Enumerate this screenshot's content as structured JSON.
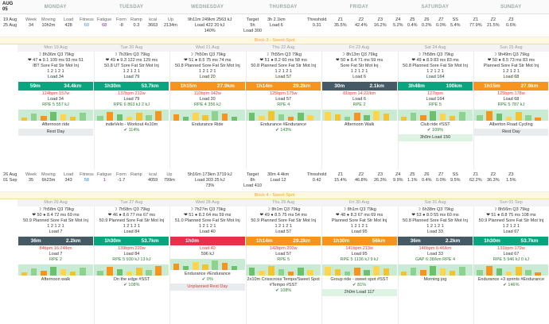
{
  "nav": {
    "month": "AUG",
    "day": "05"
  },
  "days": [
    "MONDAY",
    "TUESDAY",
    "WEDNESDAY",
    "THURSDAY",
    "FRIDAY",
    "SATURDAY",
    "SUNDAY"
  ],
  "week1": {
    "summary": {
      "date": "19 Aug",
      "date2": "25 Aug",
      "week": "34",
      "moving": "10h2m",
      "load": "428",
      "fitness": "60",
      "fatigue": "68",
      "form": "-8",
      "ramp": "0.3",
      "kcal": "3663",
      "up": "2134m",
      "ride": "9h11m 249km 2563 kJ",
      "ride_load": "Load 422",
      "ride_kj": "20 kJ",
      "ride_pct": "140%",
      "target_label": "Target",
      "target_time": "5h",
      "target_km": "3h 2.1km",
      "target_load": "Load 300",
      "run_load": "Load 6",
      "threshold": "0.31",
      "z1": "35.5%",
      "z2": "42.4%",
      "z3": "16.2%",
      "z4": "5.2%",
      "z5": "0.4%",
      "z6": "0.2%",
      "z7": "0.0%",
      "ss": "5.4%",
      "z1b": "77.9%",
      "z2b": "21.5%",
      "z3b": "0.6%"
    },
    "block": "Block 3 - Sweet Spot",
    "days": [
      {
        "date": "Mon 19 Aug",
        "time": "8h36m",
        "q": "Q3",
        "w": "79kg",
        "m": "❤ 47  ● 9.1  109 ms  93 ms  51",
        "wb": "IBT  Sore Fat Str Mot Inj",
        "wb2": "1  2  1  2  1",
        "load": "Load 34",
        "bar_l": "59m",
        "bar_r": "34.4km",
        "bar_c": "g",
        "s1": "124bpm  157w",
        "s2": "Load 34",
        "s3": "RPE 5  557 kJ",
        "s4": "Afternoon ride",
        "chip": "Rest Day",
        "pct": ""
      },
      {
        "date": "Tue 20 Aug",
        "time": "7h39m",
        "q": "Q3",
        "w": "79kg",
        "m": "❤ 49  ● 9.3  122 ms  129 ms",
        "wb": "50.8  UT  Sore Fat Str Mot Inj",
        "wb2": "1  2  1  2  1",
        "load": "Load 79",
        "bar_l": "1h30m",
        "bar_r": "53.7km",
        "bar_c": "g",
        "s1": "137bpm  212w",
        "s2": "Load 79",
        "s3": "RPE 6  863 kJ  2 kJ",
        "s4": "indieVelo - Workout 4x10m",
        "chip": "",
        "pct": "114%"
      },
      {
        "date": "Wed 21 Aug",
        "time": "7h50m",
        "q": "Q3",
        "w": "79kg",
        "m": "❤ 51  ● 8.5  75 ms  74 ms",
        "wb": "50.8  Planned  Sore Fat Str Mot Inj",
        "wb2": "1  2  1  2  1",
        "load": "Load 20",
        "bar_l": "1h15m",
        "bar_r": "27.9km",
        "bar_c": "o",
        "s1": "110bpm  142w",
        "s2": "Load 20",
        "s3": "RPE 4  356 kJ",
        "s4": "Endurance Ride",
        "chip": "",
        "pct": ""
      },
      {
        "date": "Thu 22 Aug",
        "time": "7h55m",
        "q": "Q3",
        "w": "79kg",
        "m": "❤ 51  ● 8.2  60 ms  58 ms",
        "wb": "50.8  Planned  Sore Fat Str Mot Inj",
        "wb2": "1  2  1  2  1",
        "load": "Load 57",
        "bar_l": "1h14m",
        "bar_r": "29.2km",
        "bar_c": "o",
        "s1": "125bpm  175w",
        "s2": "Load 57",
        "s3": "RPE 4",
        "s4": "Endurance #Endurance",
        "chip": "",
        "pct": "143%"
      },
      {
        "date": "Fri 23 Aug",
        "time": "8h13m",
        "q": "Q3",
        "w": "79kg",
        "m": "❤ 50  ● 8.4  71 ms  59 ms",
        "wb": "Sore Fat Str Mot Inj",
        "wb2": "1  2  1  2  1",
        "load": "Load 6",
        "bar_l": "30m",
        "bar_r": "2.1km",
        "bar_c": "dk",
        "s1": "81bpm  14:22/km",
        "s2": "Load 6",
        "s3": "RPE 2",
        "s4": "Afternoon Walk",
        "chip": "",
        "pct": ""
      },
      {
        "date": "Sat 24 Aug",
        "time": "7h58m",
        "q": "Q3",
        "w": "79kg",
        "m": "❤ 49  ● 8.9  83 ms  83 ms",
        "wb": "50.8  Planned  Sore Fat Str Mot Inj",
        "wb2": "1  2  1  2  1",
        "load": "Load 164",
        "bar_l": "3h48m",
        "bar_r": "100km",
        "bar_c": "g",
        "s1": "127bpm",
        "s2": "Load 164",
        "s3": "RPE 5",
        "s4": "Club ride  #SST",
        "chip": "3h0m  Load 150",
        "pct": "109%"
      },
      {
        "date": "Sun 25 Aug",
        "time": "9h49m",
        "q": "Q3",
        "w": "79kg",
        "m": "❤ 50  ● 8.5  73 ms  83 ms",
        "wb": "Planned  Sore Fat Str Mot Inj",
        "wb2": "1  2  1  2  1",
        "load": "Load 68",
        "bar_l": "1h15m",
        "bar_r": "27.9km",
        "bar_c": "o",
        "s1": "125bpm  178w",
        "s2": "Load 68",
        "s3": "RPE 5  787 kJ",
        "s4": "Alberton Road Cycling",
        "chip": "Rest Day",
        "pct": ""
      }
    ]
  },
  "week2": {
    "summary": {
      "date": "26 Aug",
      "date2": "01 Sep",
      "week": "35",
      "moving": "6h23m",
      "load": "343",
      "fitness": "58",
      "fatigue": "1",
      "form": "-1.7",
      "ramp": "",
      "kcal": "4059",
      "up": "799m",
      "ride": "5h16m 173km 3719 kJ",
      "ride_load": "Load 303",
      "ride_kj": "25 kJ",
      "ride_pct": "73%",
      "target_label": "Target",
      "target_time": "8h",
      "target_km": "30m 4.4km",
      "target_load": "Load 410",
      "run_load": "Load 12",
      "swim": "36m 2.2km",
      "swim_load": "Load 7",
      "threshold": "0.42",
      "z1": "15.4%",
      "z2": "46.8%",
      "z3": "26.3%",
      "z4": "9.9%",
      "z5": "1.1%",
      "z6": "0.4%",
      "z7": "0.0%",
      "ss": "9.5%",
      "z1b": "62.2%",
      "z2b": "36.3%",
      "z3b": "1.5%"
    },
    "block": "Block 4 - Sweet Spot",
    "days": [
      {
        "date": "Mon 26 Aug",
        "time": "7h58m",
        "q": "Q3",
        "w": "79kg",
        "m": "❤ 50  ● 8.4  72 ms  69 ms",
        "wb": "50.9  Planned  Sore Fat Str Mot Inj",
        "wb2": "1  2  1  2  1",
        "load": "Load 7",
        "bar_l": "36m",
        "bar_r": "2.2km",
        "bar_c": "dk",
        "s1": "84bpm  16:24/km",
        "s2": "Load 7",
        "s3": "RPE 2",
        "s4": "Afternoon walk",
        "chip": "",
        "pct": ""
      },
      {
        "date": "Tue 27 Aug",
        "time": "7h58m",
        "q": "Q3",
        "w": "79kg",
        "m": "❤ 46  ● 8.6  77 ms  67 ms",
        "wb": "50.9  Planned  Sore Fat Str Mot Inj",
        "wb2": "1  2  1  2  1",
        "load": "Load 84",
        "bar_l": "1h30m",
        "bar_r": "53.7km",
        "bar_c": "g",
        "s1": "139bpm  220w",
        "s2": "Load 84",
        "s3": "RPE 5  930 kJ  13 kJ",
        "s4": "On the edge  #SST",
        "chip": "",
        "pct": "108%"
      },
      {
        "date": "Wed 28 Aug",
        "time": "7h27m",
        "q": "Q3",
        "w": "79kg",
        "m": "❤ 51  ● 8.2  64 ms  59 ms",
        "wb": "51.0  Planned  Sore Fat Str Mot Inj",
        "wb2": "1  2  1  2  1",
        "load": "Load 40",
        "bar_l": "1h0m",
        "bar_r": "",
        "bar_c": "r",
        "s1": "Load 40",
        "s2": "596 kJ",
        "s3": "",
        "s4": "Endurance #Endurance",
        "chip": "Unplanned Rest Day",
        "pct": "0%"
      },
      {
        "date": "Thu 29 Aug",
        "time": "8h1m",
        "q": "Q3",
        "w": "79kg",
        "m": "❤ 49  ● 8.5  75 ms  54 ms",
        "wb": "50.9  Planned  Sore Fat Str Mot Inj",
        "wb2": "1  2  1  2  1",
        "load": "Load 57",
        "bar_l": "1h14m",
        "bar_r": "29.2km",
        "bar_c": "o",
        "s1": "142bpm  200w",
        "s2": "Load 57",
        "s3": "RPE 5",
        "s4": "2x10m Crisscross Tempo/Sweet Spot #Tempo #SST",
        "chip": "",
        "pct": "108%"
      },
      {
        "date": "Fri 30 Aug",
        "time": "8h1m",
        "q": "Q3",
        "w": "79kg",
        "m": "❤ 48  ● 8.3  67 ms  69 ms",
        "wb": "Planned  Sore Fat Str Mot Inj",
        "wb2": "1  2  1  2  1",
        "load": "Load 95",
        "bar_l": "1h30m",
        "bar_r": "56km",
        "bar_c": "o",
        "s1": "141bpm  213w",
        "s2": "Load 95",
        "s3": "RPE 5  1136 kJ  9 kJ",
        "s4": "Group ride - sweet spot #SST",
        "chip": "2h0m  Load 117",
        "pct": "81%"
      },
      {
        "date": "Sat 31 Aug",
        "time": "6h38m",
        "q": "Q3",
        "w": "79kg",
        "m": "❤ 53  ● 8.0  55 ms  60 ms",
        "wb": "50.8  Planned  Sore Fat Str Mot Inj",
        "wb2": "1  2  1  2  1",
        "load": "Load 33",
        "bar_l": "36m",
        "bar_r": "2.2km",
        "bar_c": "dk",
        "s1": "146bpm  6:46/km",
        "s2": "Load 33",
        "s3": "GAP 6:38/km  RPE 4",
        "s4": "Morning jog",
        "chip": "",
        "pct": ""
      },
      {
        "date": "Sun 01 Sep",
        "time": "8h56m",
        "q": "Q3",
        "w": "79kg",
        "m": "❤ 51  ● 8.8  75 ms  108 ms",
        "wb": "50.9  Planned  Sore Fat Str Mot Inj",
        "wb2": "1  2  1  2  1",
        "load": "Load 67",
        "bar_l": "1h30m",
        "bar_r": "53.7km",
        "bar_c": "g",
        "s1": "131bpm  179w",
        "s2": "Load 67",
        "s3": "RPE 5  946 kJ  0 kJ",
        "s4": "Endurance +3 sprints #Endurance",
        "chip": "",
        "pct": "146%"
      }
    ]
  }
}
